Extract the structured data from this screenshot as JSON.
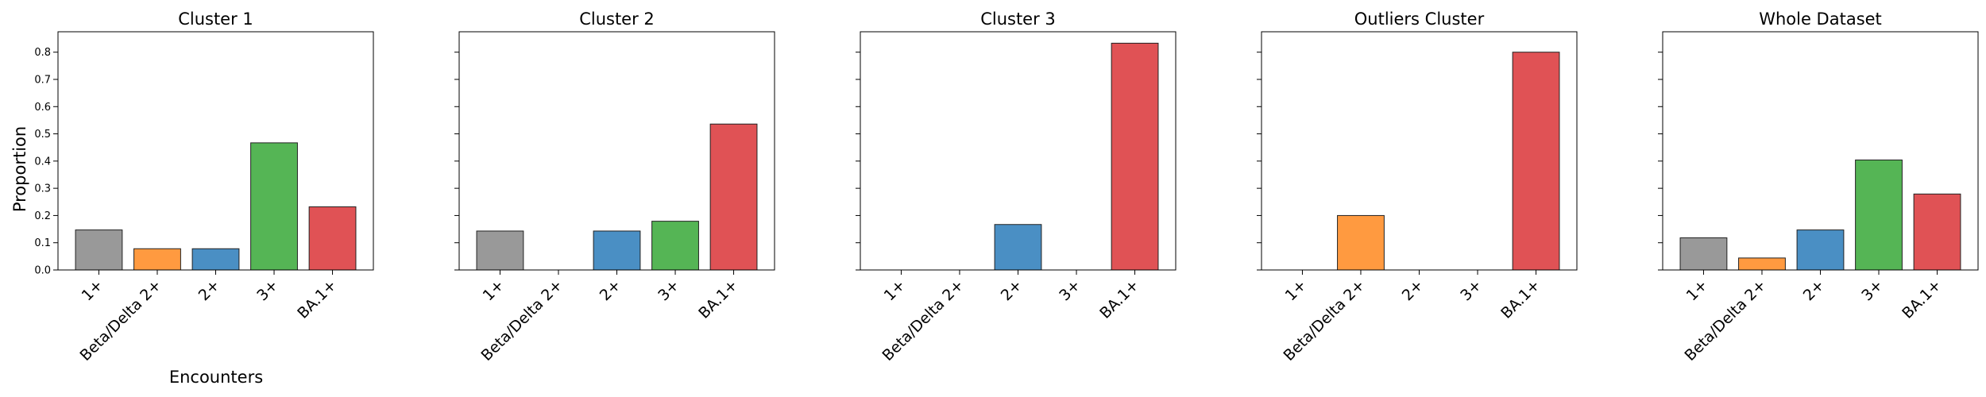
{
  "chart_data": {
    "type": "bar",
    "categories": [
      "1+",
      "Beta/Delta 2+",
      "2+",
      "3+",
      "BA.1+"
    ],
    "colors": [
      "#999999",
      "#ff9a40",
      "#4a8fc4",
      "#55b555",
      "#e05255"
    ],
    "xlabel": "Encounters",
    "ylabel": "Proportion",
    "ylim": [
      0,
      0.875
    ],
    "yticks": [
      "0.0",
      "0.1",
      "0.2",
      "0.3",
      "0.4",
      "0.5",
      "0.6",
      "0.7",
      "0.8"
    ],
    "sharey": true,
    "grid": false,
    "panels": [
      {
        "title": "Cluster 1",
        "values": [
          0.147,
          0.078,
          0.078,
          0.467,
          0.232
        ]
      },
      {
        "title": "Cluster 2",
        "values": [
          0.143,
          0.0,
          0.143,
          0.179,
          0.536
        ]
      },
      {
        "title": "Cluster 3",
        "values": [
          0.0,
          0.0,
          0.167,
          0.0,
          0.833
        ]
      },
      {
        "title": "Outliers Cluster",
        "values": [
          0.0,
          0.2,
          0.0,
          0.0,
          0.8
        ]
      },
      {
        "title": "Whole Dataset",
        "values": [
          0.118,
          0.044,
          0.147,
          0.404,
          0.279
        ]
      }
    ]
  }
}
